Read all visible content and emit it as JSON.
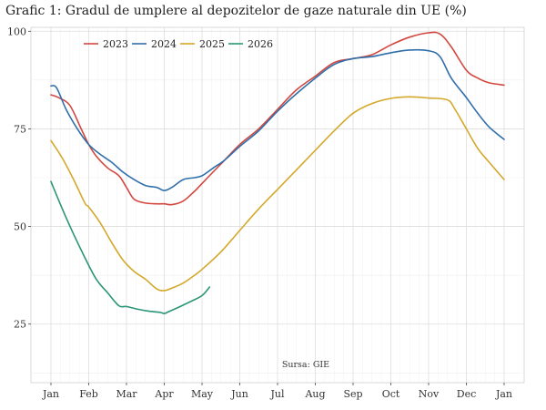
{
  "chart_data": {
    "type": "line",
    "title": "Grafic 1: Gradul de umplere al depozitelor de gaze naturale din UE (%)",
    "xlabel": "",
    "ylabel": "",
    "x_tick_labels": [
      "Jan",
      "Feb",
      "Mar",
      "Apr",
      "May",
      "Jun",
      "Jul",
      "Aug",
      "Sep",
      "Oct",
      "Nov",
      "Dec",
      "Jan"
    ],
    "y_ticks": [
      25,
      50,
      75,
      100
    ],
    "ylim": [
      10,
      101
    ],
    "xlim": [
      0,
      12
    ],
    "grid": true,
    "legend_position": "top-left",
    "source_note": "Sursa: GIE",
    "series": [
      {
        "name": "2023",
        "color": "#d2473f",
        "x": [
          0,
          0.2,
          0.5,
          0.8,
          1.0,
          1.2,
          1.5,
          1.8,
          2.0,
          2.2,
          2.5,
          2.8,
          3.0,
          3.2,
          3.5,
          3.8,
          4.0,
          4.5,
          5.0,
          5.5,
          6.0,
          6.5,
          7.0,
          7.5,
          8.0,
          8.5,
          9.0,
          9.5,
          10.0,
          10.3,
          10.6,
          11.0,
          11.3,
          11.6,
          12.0
        ],
        "values": [
          83.7,
          83,
          81,
          75,
          71,
          68,
          65,
          63,
          60,
          57,
          56,
          55.8,
          55.8,
          55.6,
          56.5,
          59,
          61,
          66,
          71,
          75,
          80,
          85,
          88.5,
          92,
          93,
          94,
          96.5,
          98.5,
          99.6,
          99.3,
          96,
          90,
          88,
          86.8,
          86.2
        ]
      },
      {
        "name": "2024",
        "color": "#2f6faa",
        "x": [
          0,
          0.15,
          0.4,
          0.7,
          1.0,
          1.3,
          1.6,
          1.9,
          2.2,
          2.5,
          2.8,
          3.0,
          3.2,
          3.5,
          3.8,
          4.0,
          4.3,
          4.6,
          5.0,
          5.5,
          6.0,
          6.5,
          7.0,
          7.5,
          8.0,
          8.5,
          9.0,
          9.5,
          10.0,
          10.3,
          10.6,
          11.0,
          11.3,
          11.6,
          12.0
        ],
        "values": [
          86,
          85.5,
          80,
          75,
          71,
          68.5,
          66.5,
          64,
          62,
          60.5,
          60,
          59.2,
          60,
          62,
          62.5,
          63,
          65,
          67,
          70.5,
          74.5,
          79.5,
          84,
          88,
          91.5,
          93,
          93.5,
          94.5,
          95.2,
          95,
          93.5,
          88,
          83,
          79,
          75.5,
          72.3
        ]
      },
      {
        "name": "2025",
        "color": "#d4a82a",
        "x": [
          0,
          0.3,
          0.6,
          0.9,
          1.0,
          1.3,
          1.6,
          1.9,
          2.2,
          2.5,
          2.8,
          3.0,
          3.2,
          3.5,
          3.8,
          4.0,
          4.5,
          5.0,
          5.5,
          6.0,
          6.5,
          7.0,
          7.5,
          8.0,
          8.5,
          9.0,
          9.5,
          10.0,
          10.5,
          10.7,
          11.0,
          11.3,
          11.6,
          12.0
        ],
        "values": [
          72,
          67.5,
          62,
          56,
          55,
          51,
          46,
          41.5,
          38.5,
          36.5,
          34,
          33.6,
          34.2,
          35.5,
          37.5,
          39,
          43.5,
          49,
          54.5,
          59.5,
          64.5,
          69.5,
          74.5,
          79,
          81.5,
          82.8,
          83.2,
          82.9,
          82.4,
          80,
          75,
          70,
          66.5,
          62
        ]
      },
      {
        "name": "2026",
        "color": "#2a9577",
        "x": [
          0,
          0.3,
          0.6,
          0.9,
          1.2,
          1.5,
          1.8,
          2.0,
          2.3,
          2.6,
          2.9,
          3.0,
          3.1,
          3.4,
          3.7,
          4.0,
          4.2
        ],
        "values": [
          61.5,
          54.5,
          48,
          42,
          36.5,
          33,
          29.7,
          29.5,
          28.8,
          28.3,
          28,
          27.7,
          28.1,
          29.4,
          30.8,
          32.3,
          34.5
        ]
      }
    ]
  }
}
